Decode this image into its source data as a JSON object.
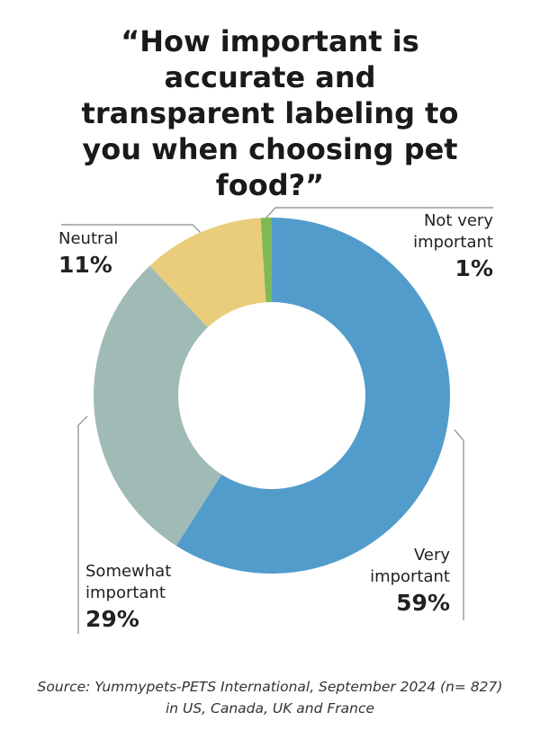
{
  "chart_data": {
    "type": "pie",
    "title": "“How important is accurate and transparent labeling to you when choosing pet food?”",
    "categories": [
      "Very important",
      "Somewhat important",
      "Neutral",
      "Not very important"
    ],
    "values": [
      59,
      29,
      11,
      1
    ],
    "value_labels": [
      "59%",
      "29%",
      "11%",
      "1%"
    ],
    "colors": [
      "#519ccb",
      "#a0bab5",
      "#e9cd7a",
      "#7fb957"
    ],
    "source": "Source: Yummypets-PETS International, September 2024 (n= 827) in US, Canada, UK and France"
  }
}
